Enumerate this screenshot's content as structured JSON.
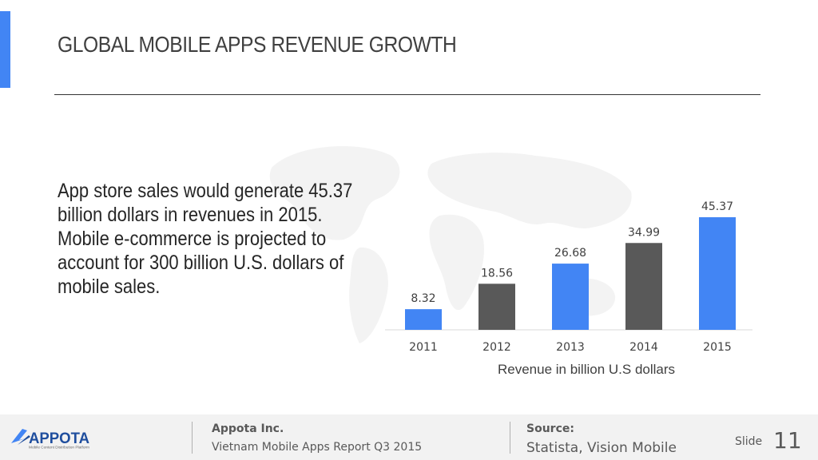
{
  "slide": {
    "title": "GLOBAL MOBILE APPS REVENUE GROWTH",
    "body_lines": [
      "App store sales would generate 45.37",
      "billion dollars in revenues in 2015.",
      "Mobile e-commerce is projected to",
      "account for 300 billion U.S. dollars of",
      "mobile sales."
    ],
    "accent_color": "#4285f4"
  },
  "chart_data": {
    "type": "bar",
    "categories": [
      "2011",
      "2012",
      "2013",
      "2014",
      "2015"
    ],
    "values": [
      8.32,
      18.56,
      26.68,
      34.99,
      45.37
    ],
    "data_labels": [
      "8.32",
      "18.56",
      "26.68",
      "34.99",
      "45.37"
    ],
    "bar_colors": [
      "#4285f4",
      "#595959",
      "#4285f4",
      "#595959",
      "#4285f4"
    ],
    "xlabel": "Revenue in billion U.S dollars",
    "ylabel": "",
    "ylim": [
      0,
      50
    ],
    "grid": false,
    "legend": "none"
  },
  "footer": {
    "logo_text": "APPOTA",
    "logo_tagline": "Mobile Content Distribution Platform",
    "company": "Appota Inc.",
    "report": "Vietnam Mobile Apps Report Q3 2015",
    "source_label": "Source:",
    "source_text": "Statista, Vision Mobile",
    "slide_label": "Slide",
    "slide_number": "11"
  }
}
